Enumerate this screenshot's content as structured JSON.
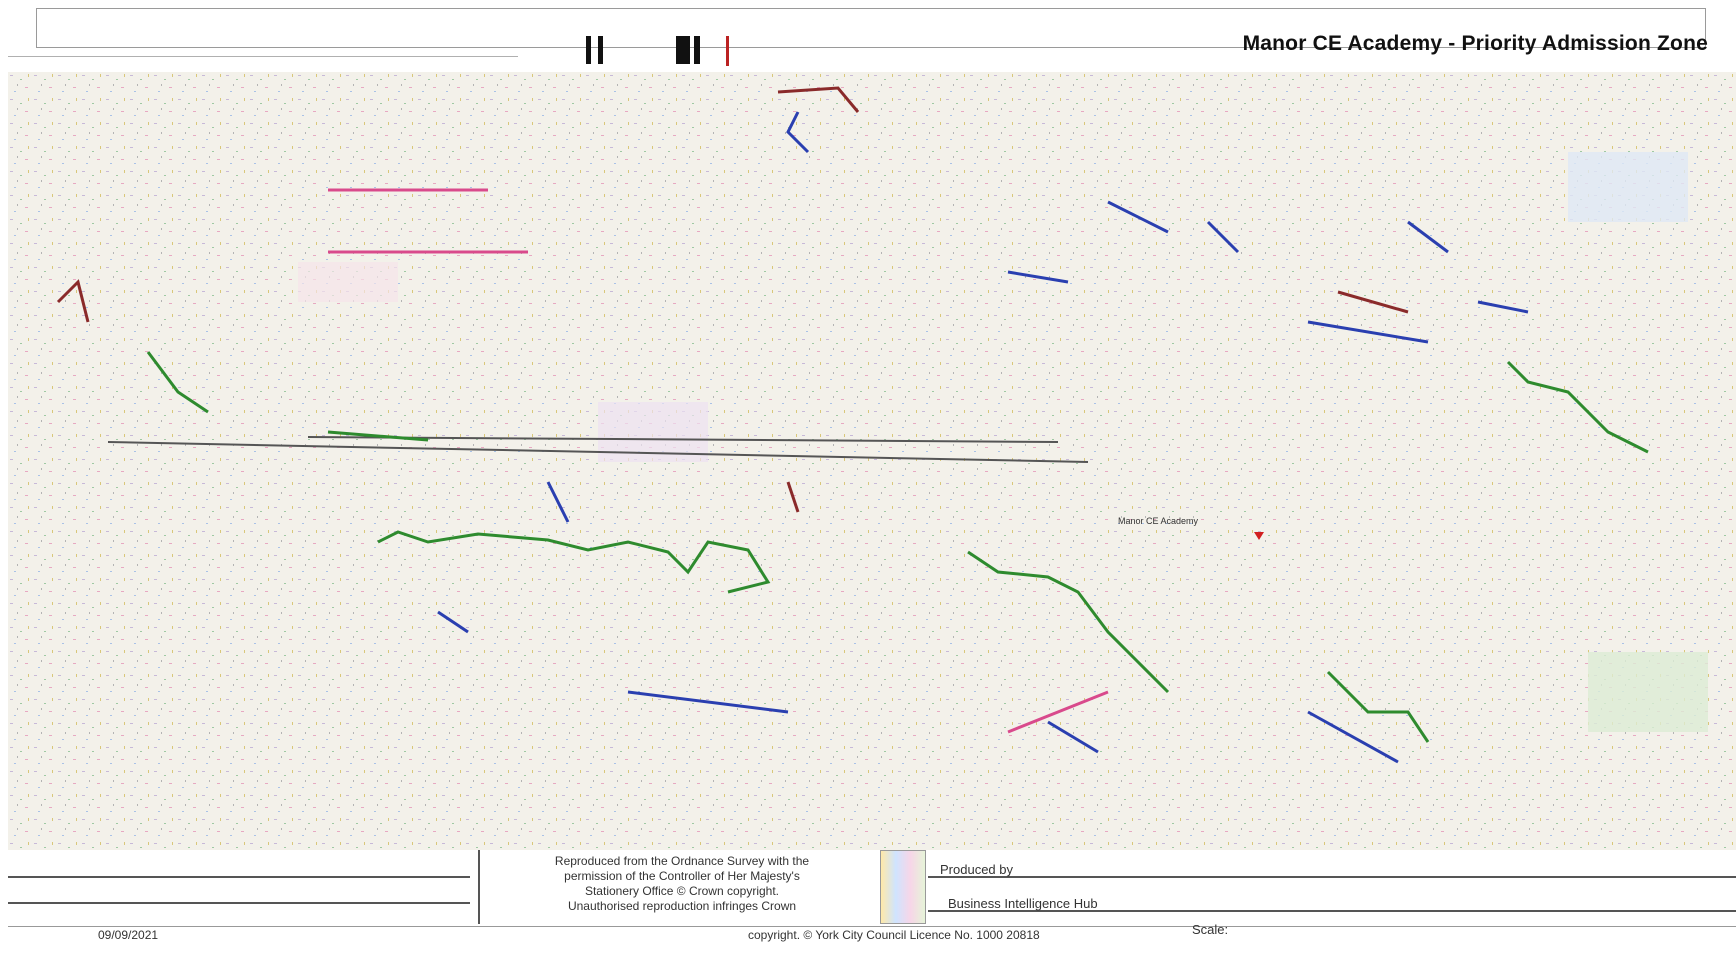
{
  "header": {
    "title": "Manor CE Academy - Priority Admission Zone"
  },
  "map": {
    "labels": [
      "Manor CE Academy"
    ],
    "colors": {
      "background": "#f3f1ea",
      "zone_boundary": "#2e8b2e",
      "road_a": "#d94a8c",
      "road_b": "#2a3fb0",
      "water": "#8fc7e8",
      "marker": "#d11f1f"
    },
    "marker_icon": "location-marker-icon"
  },
  "footer": {
    "copyright": "Reproduced from the Ordnance Survey with the\npermission of the Controller of Her Majesty's\nStationery Office © Crown copyright.\nUnauthorised reproduction infringes Crown",
    "produced_by": "Produced by",
    "unit": "Business Intelligence Hub",
    "scale": "Scale:",
    "date": "09/09/2021",
    "licence": "copyright. © York City Council Licence No. 1000 20818"
  }
}
